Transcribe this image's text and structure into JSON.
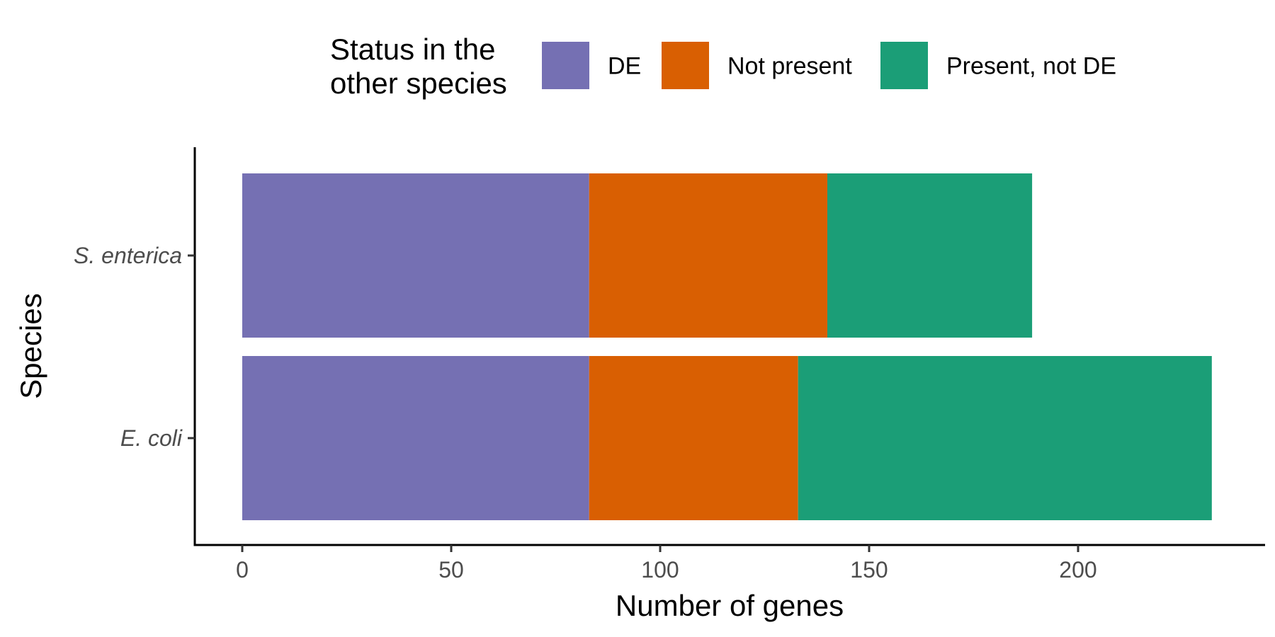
{
  "chart_data": {
    "type": "bar",
    "orientation": "horizontal",
    "stacked": true,
    "title": "",
    "xlabel": "Number of genes",
    "ylabel": "Species",
    "xlim": [
      0,
      240
    ],
    "x_ticks": [
      0,
      50,
      100,
      150,
      200
    ],
    "categories": [
      "S. enterica",
      "E. coli"
    ],
    "series": [
      {
        "name": "DE",
        "values": [
          83,
          83
        ],
        "color": "#7570B3"
      },
      {
        "name": "Not present",
        "values": [
          57,
          50
        ],
        "color": "#D95F02"
      },
      {
        "name": "Present, not DE",
        "values": [
          49,
          99
        ],
        "color": "#1B9E77"
      }
    ],
    "legend": {
      "title_lines": [
        "Status in the",
        "other species"
      ],
      "placement": "top"
    },
    "grid": false
  }
}
